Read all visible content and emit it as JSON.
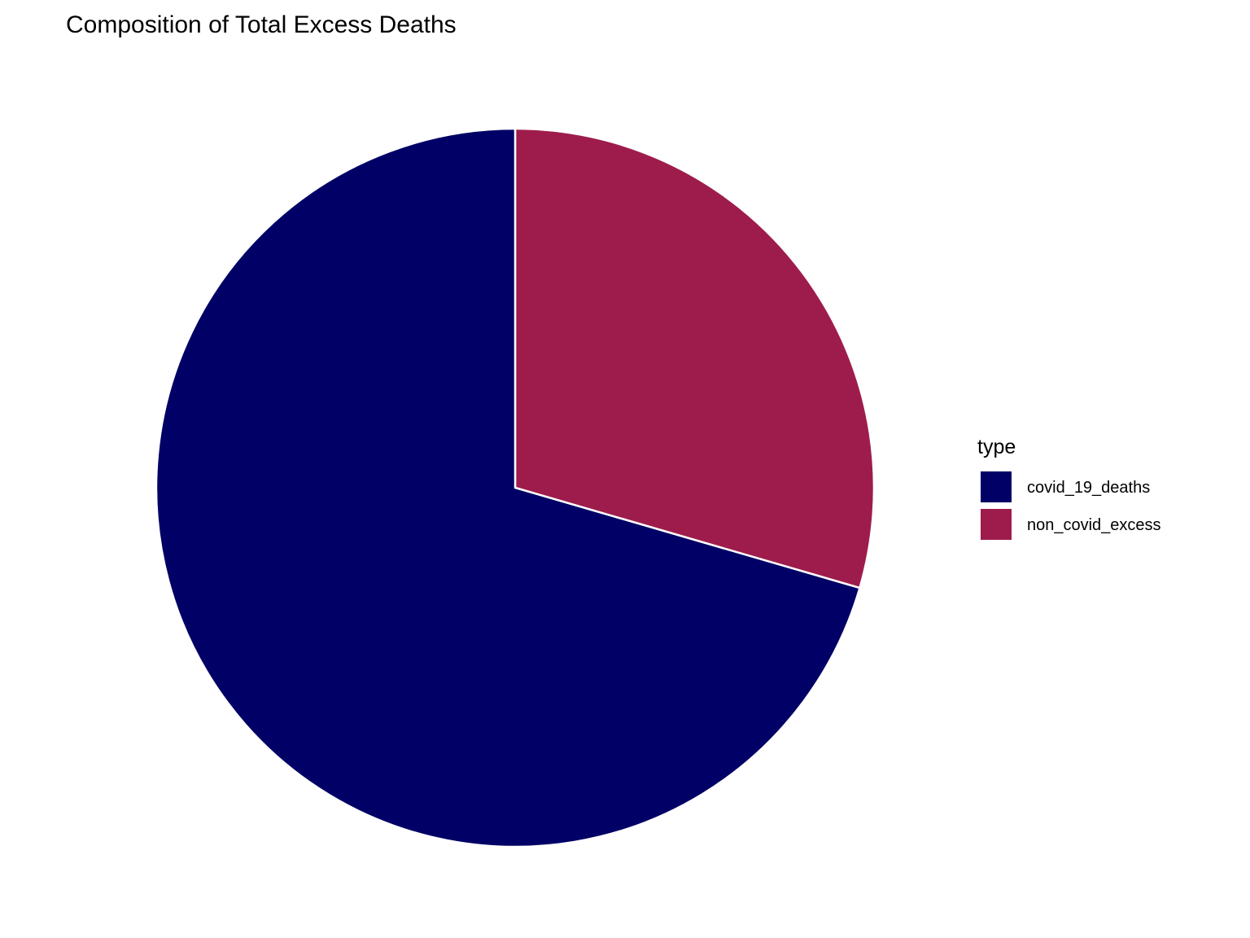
{
  "chart_data": {
    "type": "pie",
    "title": "Composition of Total Excess Deaths",
    "legend": {
      "title": "type",
      "placement": "right"
    },
    "start_direction": "12 o'clock",
    "direction": "clockwise",
    "slices": [
      {
        "label": "non_covid_excess",
        "value": 0.295,
        "color": "#9E1C4C"
      },
      {
        "label": "covid_19_deaths",
        "value": 0.705,
        "color": "#000066"
      }
    ],
    "legend_order": [
      "covid_19_deaths",
      "non_covid_excess"
    ],
    "slice_border_color": "#ffffff"
  }
}
